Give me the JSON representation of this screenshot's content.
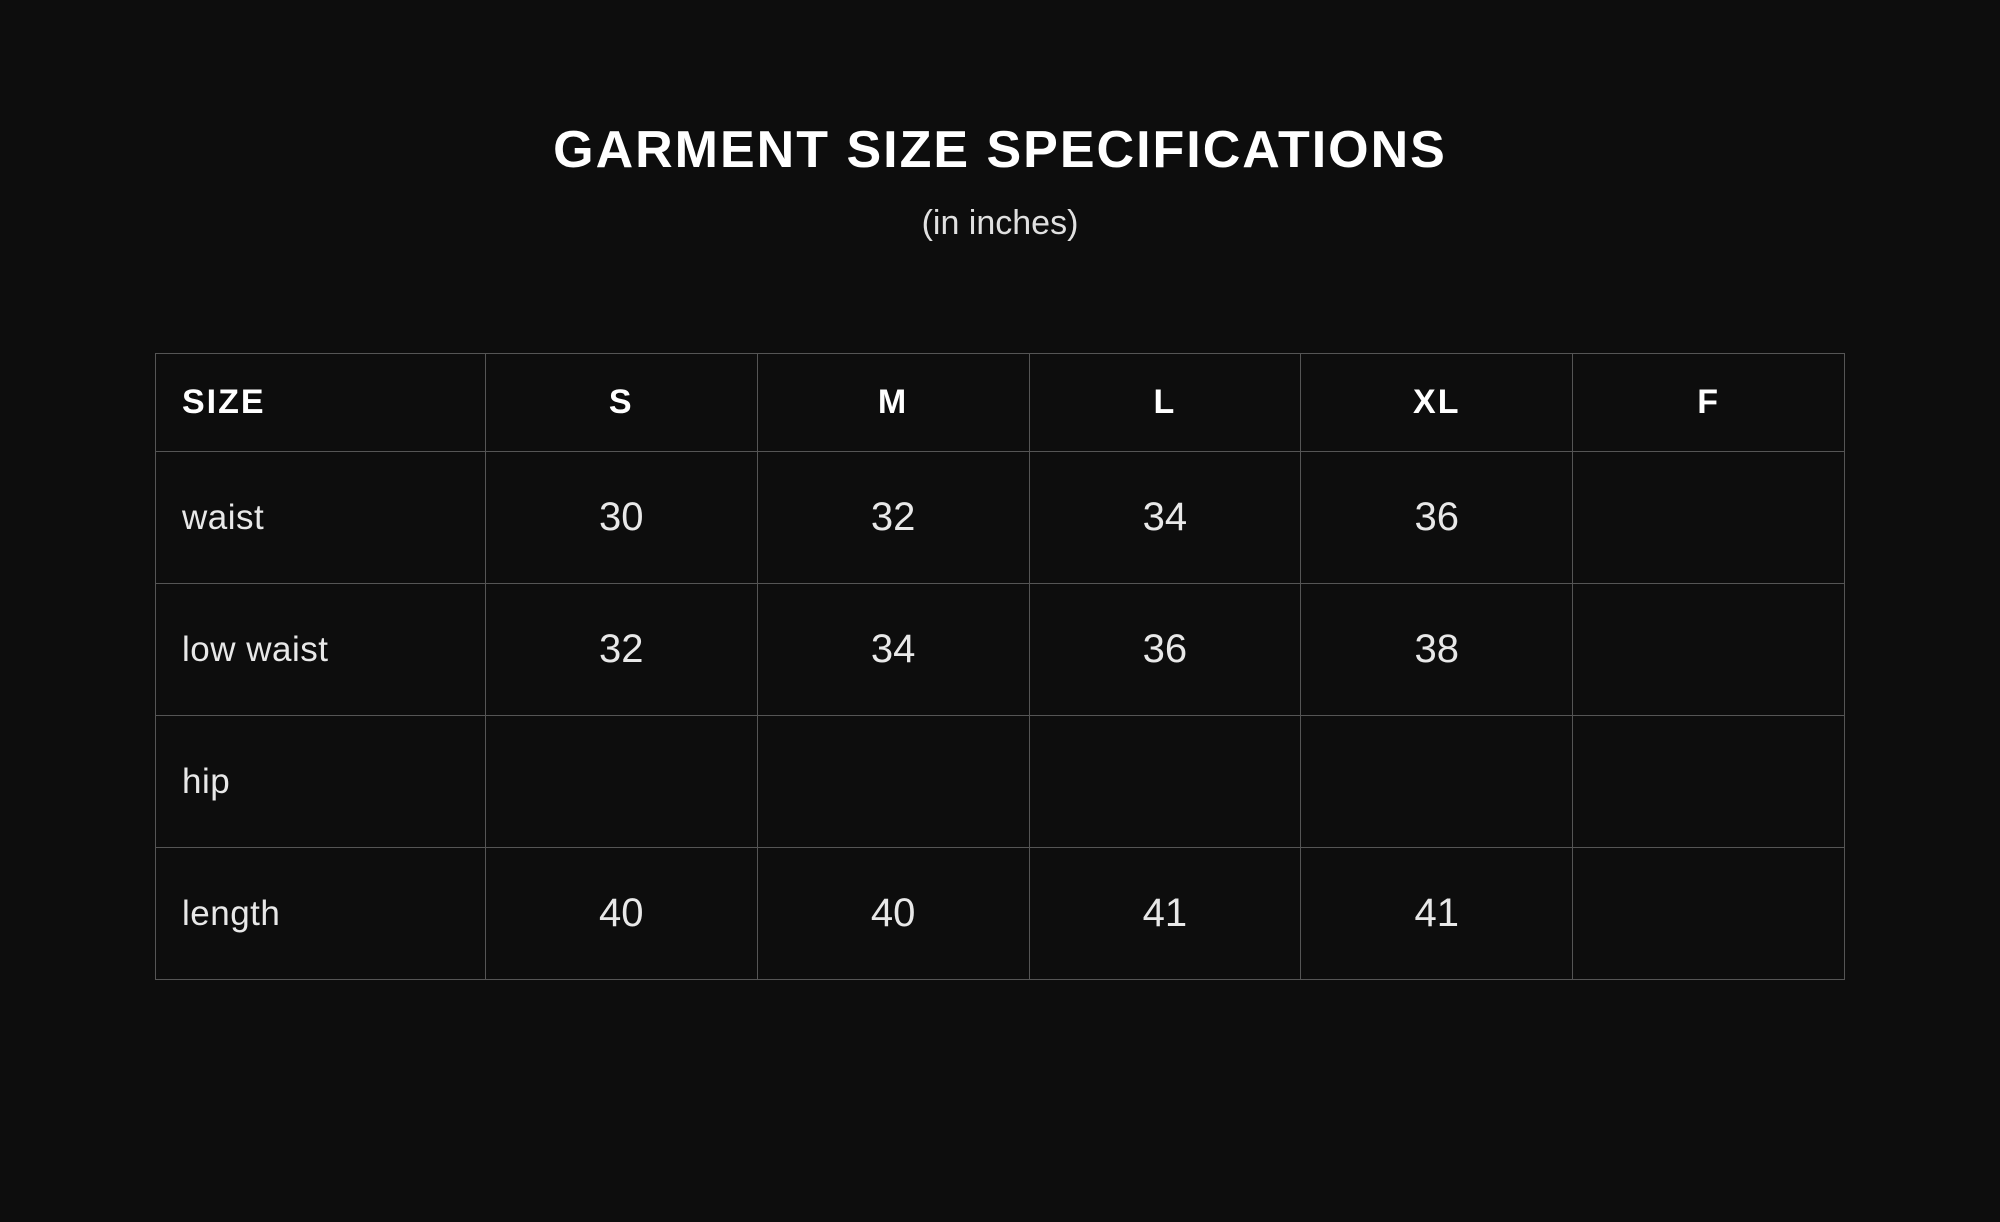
{
  "title": "GARMENT SIZE SPECIFICATIONS",
  "subtitle": "(in inches)",
  "table": {
    "type": "table",
    "background_color": "#0d0d0d",
    "border_color": "#555555",
    "text_color": "#e8e8e8",
    "header_color": "#ffffff",
    "title_fontsize": 52,
    "subtitle_fontsize": 34,
    "header_fontsize": 34,
    "cell_fontsize": 40,
    "row_label_fontsize": 35,
    "header_row_height": 98,
    "body_row_height": 132,
    "first_col_width": 330,
    "data_col_width": 272,
    "columns": [
      "SIZE",
      "S",
      "M",
      "L",
      "XL",
      "F"
    ],
    "rows": [
      {
        "label": "waist",
        "values": [
          "30",
          "32",
          "34",
          "36",
          ""
        ]
      },
      {
        "label": "low waist",
        "values": [
          "32",
          "34",
          "36",
          "38",
          ""
        ]
      },
      {
        "label": "hip",
        "values": [
          "",
          "",
          "",
          "",
          ""
        ]
      },
      {
        "label": "length",
        "values": [
          "40",
          "40",
          "41",
          "41",
          ""
        ]
      }
    ]
  }
}
